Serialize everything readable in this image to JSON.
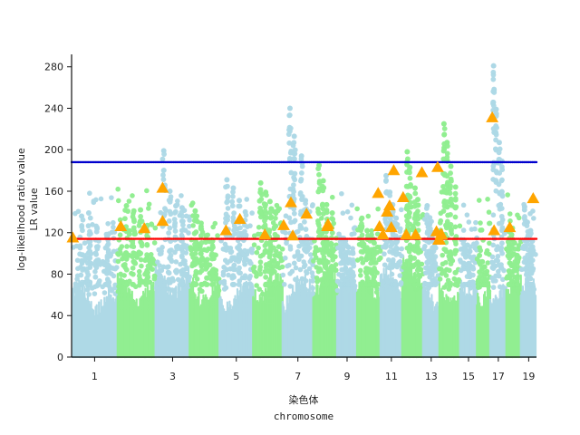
{
  "chart_data": {
    "type": "scatter",
    "title": "",
    "xlabel_lines": [
      "染色体",
      "chromosome"
    ],
    "ylabel_lines": [
      "log-likelihood ratio value",
      "LR value"
    ],
    "y_ticks": [
      "0",
      "40",
      "80",
      "120",
      "160",
      "200",
      "240",
      "280"
    ],
    "x_ticks": [
      "1",
      "3",
      "5",
      "7",
      "9",
      "11",
      "13",
      "15",
      "17",
      "19"
    ],
    "ylim": [
      0,
      292
    ],
    "grid": false,
    "legend": "none",
    "chromosomes": [
      {
        "id": 1,
        "start": 0.0,
        "end": 4.42,
        "color": "#add8e6",
        "peaks": [
          136,
          139,
          124,
          116
        ]
      },
      {
        "id": 2,
        "start": 4.42,
        "end": 8.06,
        "color": "#90ee90",
        "peaks": [
          146,
          141,
          142,
          127
        ]
      },
      {
        "id": 3,
        "start": 8.06,
        "end": 11.33,
        "color": "#add8e6",
        "peaks": [
          199,
          160,
          146,
          144
        ]
      },
      {
        "id": 4,
        "start": 11.33,
        "end": 14.2,
        "color": "#90ee90",
        "peaks": [
          141,
          126,
          117,
          112
        ]
      },
      {
        "id": 5,
        "start": 14.2,
        "end": 17.42,
        "color": "#add8e6",
        "peaks": [
          171,
          163,
          151,
          140
        ]
      },
      {
        "id": 6,
        "start": 17.42,
        "end": 20.25,
        "color": "#90ee90",
        "peaks": [
          168,
          159,
          150,
          140
        ]
      },
      {
        "id": 7,
        "start": 20.25,
        "end": 23.19,
        "color": "#add8e6",
        "peaks": [
          240,
          213,
          194,
          151
        ]
      },
      {
        "id": 8,
        "start": 23.19,
        "end": 25.48,
        "color": "#90ee90",
        "peaks": [
          185,
          170,
          147,
          139
        ]
      },
      {
        "id": 9,
        "start": 25.48,
        "end": 27.4,
        "color": "#add8e6",
        "peaks": [
          115,
          112,
          106,
          100
        ]
      },
      {
        "id": 10,
        "start": 27.4,
        "end": 29.65,
        "color": "#90ee90",
        "peaks": [
          134,
          122,
          116,
          110
        ]
      },
      {
        "id": 11,
        "start": 29.65,
        "end": 31.73,
        "color": "#add8e6",
        "peaks": [
          175,
          159,
          147,
          134
        ]
      },
      {
        "id": 12,
        "start": 31.73,
        "end": 33.73,
        "color": "#90ee90",
        "peaks": [
          198,
          183,
          163,
          152
        ]
      },
      {
        "id": 13,
        "start": 33.73,
        "end": 35.3,
        "color": "#add8e6",
        "peaks": [
          146,
          128,
          120,
          110
        ]
      },
      {
        "id": 14,
        "start": 35.3,
        "end": 37.29,
        "color": "#90ee90",
        "peaks": [
          225,
          207,
          184,
          164
        ]
      },
      {
        "id": 15,
        "start": 37.29,
        "end": 38.9,
        "color": "#add8e6",
        "peaks": [
          113,
          108,
          102,
          96
        ]
      },
      {
        "id": 16,
        "start": 38.9,
        "end": 40.18,
        "color": "#90ee90",
        "peaks": [
          98,
          92,
          87,
          80
        ]
      },
      {
        "id": 17,
        "start": 40.18,
        "end": 41.73,
        "color": "#add8e6",
        "peaks": [
          281,
          239,
          207,
          189
        ]
      },
      {
        "id": 18,
        "start": 41.73,
        "end": 43.12,
        "color": "#90ee90",
        "peaks": [
          121,
          118,
          110,
          98
        ]
      },
      {
        "id": 19,
        "start": 43.12,
        "end": 44.62,
        "color": "#add8e6",
        "peaks": [
          145,
          130,
          122,
          112
        ]
      }
    ],
    "series": [
      {
        "name": "",
        "marker": "triangle",
        "color": "#ffa500",
        "x": [
          0.12,
          4.72,
          6.98,
          8.73,
          8.73,
          14.82,
          16.15,
          18.55,
          20.35,
          21.05,
          21.23,
          22.55,
          24.55,
          24.61,
          29.42,
          29.55,
          29.88,
          30.28,
          30.52,
          30.68,
          30.92,
          31.82,
          32.12,
          33.02,
          33.62,
          35.02,
          35.13,
          35.22,
          35.32,
          35.44,
          35.52,
          40.37,
          40.55,
          42.05,
          44.3
        ],
        "y": [
          115,
          126,
          124,
          163,
          131,
          122,
          133,
          118,
          127,
          149,
          117,
          138,
          126,
          128,
          158,
          126,
          118,
          140,
          146,
          125,
          180,
          154,
          118,
          118,
          178,
          121,
          183,
          113,
          113,
          118,
          118,
          231,
          122,
          125,
          153
        ]
      }
    ],
    "h_lines": [
      {
        "y": 188,
        "color": "#0000cd"
      },
      {
        "y": 114,
        "color": "#ff0000"
      }
    ]
  }
}
